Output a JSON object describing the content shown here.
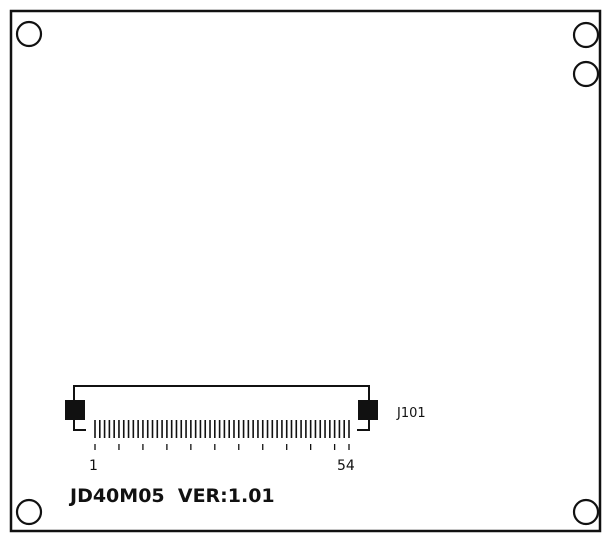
{
  "board": {
    "silkscreen_color": "#111111",
    "background_color": "#ffffff",
    "mounting_holes": [
      {
        "name": "top-left"
      },
      {
        "name": "top-right"
      },
      {
        "name": "top-right-lower"
      },
      {
        "name": "bottom-left"
      },
      {
        "name": "bottom-right"
      }
    ]
  },
  "connector": {
    "designator": "J101",
    "pin_count": 54,
    "first_pin_label": "1",
    "last_pin_label": "54"
  },
  "board_label": "JD40M05  VER:1.01"
}
